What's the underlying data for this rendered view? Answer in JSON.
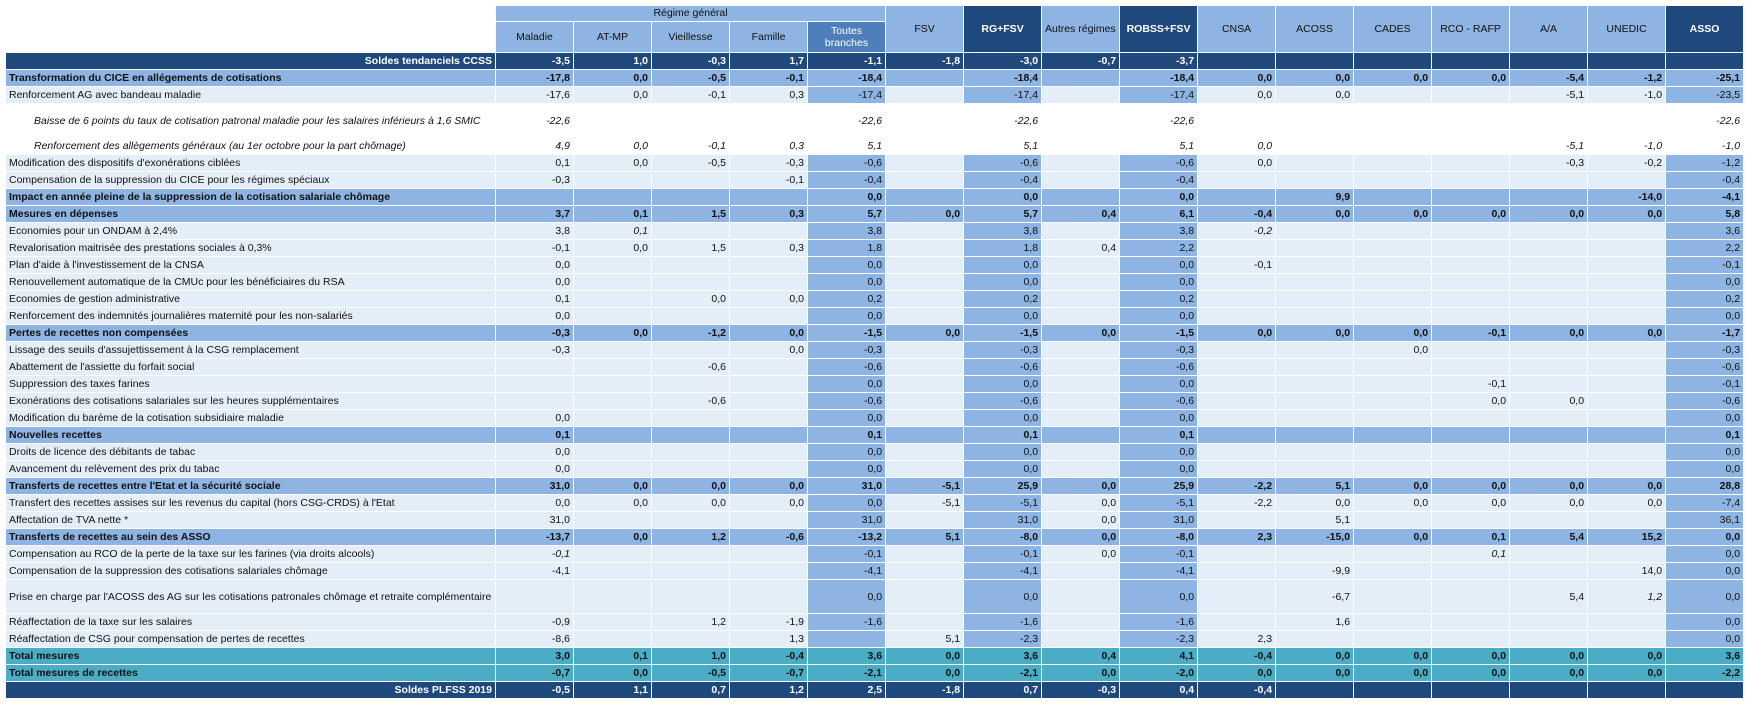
{
  "header": {
    "group_label": "Régime général",
    "columns": [
      "Maladie",
      "AT-MP",
      "Vieillesse",
      "Famille",
      "Toutes branches",
      "FSV",
      "RG+FSV",
      "Autres régimes de base",
      "ROBSS+FSV",
      "CNSA",
      "ACOSS",
      "CADES",
      "RCO - RAFP",
      "A/A",
      "UNEDIC",
      "ASSO"
    ],
    "highlight_columns": [
      "Toutes branches",
      "RG+FSV",
      "ROBSS+FSV",
      "ASSO"
    ]
  },
  "colors": {
    "dark": "#1f497d",
    "section": "#8db4e2",
    "item": "#e4eef8",
    "total": "#4bacc6"
  },
  "rows": [
    {
      "type": "top",
      "label": "Soldes tendanciels CCSS",
      "values": [
        "-3,5",
        "1,0",
        "-0,3",
        "1,7",
        "-1,1",
        "-1,8",
        "-3,0",
        "-0,7",
        "-3,7",
        "",
        "",
        "",
        "",
        "",
        "",
        ""
      ]
    },
    {
      "type": "section",
      "label": "Transformation du CICE en allégements de cotisations",
      "values": [
        "-17,8",
        "0,0",
        "-0,5",
        "-0,1",
        "-18,4",
        "",
        "-18,4",
        "",
        "-18,4",
        "0,0",
        "0,0",
        "0,0",
        "0,0",
        "-5,4",
        "-1,2",
        "-25,1"
      ]
    },
    {
      "type": "item",
      "label": "Renforcement AG avec bandeau maladie",
      "values": [
        "-17,6",
        "0,0",
        "-0,1",
        "0,3",
        "-17,4",
        "",
        "-17,4",
        "",
        "-17,4",
        "0,0",
        "0,0",
        "",
        "",
        "-5,1",
        "-1,0",
        "-23,5"
      ]
    },
    {
      "type": "sub",
      "double": true,
      "label": "Baisse de 6 points du taux de cotisation patronal maladie pour les salaires inférieurs à 1,6 SMIC",
      "values": [
        "-22,6",
        "",
        "",
        "",
        "-22,6",
        "",
        "-22,6",
        "",
        "-22,6",
        "",
        "",
        "",
        "",
        "",
        "",
        "-22,6"
      ]
    },
    {
      "type": "sub",
      "label": "Renforcement des allègements généraux (au 1er octobre pour la part chômage)",
      "values": [
        "4,9",
        "0,0",
        "-0,1",
        "0,3",
        "5,1",
        "",
        "5,1",
        "",
        "5,1",
        "0,0",
        "",
        "",
        "",
        "-5,1",
        "-1,0",
        "-1,0"
      ]
    },
    {
      "type": "item",
      "label": "Modification des dispositifs d'exonérations ciblées",
      "values": [
        "0,1",
        "0,0",
        "-0,5",
        "-0,3",
        "-0,6",
        "",
        "-0,6",
        "",
        "-0,6",
        "0,0",
        "",
        "",
        "",
        "-0,3",
        "-0,2",
        "-1,2"
      ]
    },
    {
      "type": "item",
      "label": "Compensation de la suppression du CICE pour les régimes spéciaux",
      "values": [
        "-0,3",
        "",
        "",
        "-0,1",
        "-0,4",
        "",
        "-0,4",
        "",
        "-0,4",
        "",
        "",
        "",
        "",
        "",
        "",
        "-0,4"
      ]
    },
    {
      "type": "section",
      "label": "Impact en année pleine de la suppression de la cotisation salariale chômage",
      "values": [
        "",
        "",
        "",
        "",
        "0,0",
        "",
        "0,0",
        "",
        "0,0",
        "",
        "9,9",
        "",
        "",
        "",
        "-14,0",
        "-4,1"
      ]
    },
    {
      "type": "section",
      "label": "Mesures en dépenses",
      "values": [
        "3,7",
        "0,1",
        "1,5",
        "0,3",
        "5,7",
        "0,0",
        "5,7",
        "0,4",
        "6,1",
        "-0,4",
        "0,0",
        "0,0",
        "0,0",
        "0,0",
        "0,0",
        "5,8"
      ]
    },
    {
      "type": "item",
      "label": "Economies pour un ONDAM à 2,4%",
      "values": [
        "3,8",
        "0,1",
        "",
        "",
        "3,8",
        "",
        "3,8",
        "",
        "3,8",
        "-0,2",
        "",
        "",
        "",
        "",
        "",
        "3,6"
      ],
      "italic": [
        1,
        9
      ]
    },
    {
      "type": "item",
      "label": "Revalorisation maitrisée des prestations sociales à 0,3%",
      "values": [
        "-0,1",
        "0,0",
        "1,5",
        "0,3",
        "1,8",
        "",
        "1,8",
        "0,4",
        "2,2",
        "",
        "",
        "",
        "",
        "",
        "",
        "2,2"
      ]
    },
    {
      "type": "item",
      "label": "Plan d'aide à l'investissement de la CNSA",
      "values": [
        "0,0",
        "",
        "",
        "",
        "0,0",
        "",
        "0,0",
        "",
        "0,0",
        "-0,1",
        "",
        "",
        "",
        "",
        "",
        "-0,1"
      ]
    },
    {
      "type": "item",
      "label": "Renouvellement automatique de la CMUc pour les bénéficiaires du RSA",
      "values": [
        "0,0",
        "",
        "",
        "",
        "0,0",
        "",
        "0,0",
        "",
        "0,0",
        "",
        "",
        "",
        "",
        "",
        "",
        "0,0"
      ]
    },
    {
      "type": "item",
      "label": "Economies de gestion administrative",
      "values": [
        "0,1",
        "",
        "0,0",
        "0,0",
        "0,2",
        "",
        "0,2",
        "",
        "0,2",
        "",
        "",
        "",
        "",
        "",
        "",
        "0,2"
      ]
    },
    {
      "type": "item",
      "label": "Renforcement des indemnités journalières maternité pour les non-salariés",
      "values": [
        "0,0",
        "",
        "",
        "",
        "0,0",
        "",
        "0,0",
        "",
        "0,0",
        "",
        "",
        "",
        "",
        "",
        "",
        "0,0"
      ]
    },
    {
      "type": "section",
      "label": "Pertes de recettes non compensées",
      "values": [
        "-0,3",
        "0,0",
        "-1,2",
        "0,0",
        "-1,5",
        "0,0",
        "-1,5",
        "0,0",
        "-1,5",
        "0,0",
        "0,0",
        "0,0",
        "-0,1",
        "0,0",
        "0,0",
        "-1,7"
      ]
    },
    {
      "type": "item",
      "label": "Lissage des seuils d'assujettissement à la CSG remplacement",
      "values": [
        "-0,3",
        "",
        "",
        "0,0",
        "-0,3",
        "",
        "-0,3",
        "",
        "-0,3",
        "",
        "",
        "0,0",
        "",
        "",
        "",
        "-0,3"
      ]
    },
    {
      "type": "item",
      "label": "Abattement de l'assiette du forfait social",
      "values": [
        "",
        "",
        "-0,6",
        "",
        "-0,6",
        "",
        "-0,6",
        "",
        "-0,6",
        "",
        "",
        "",
        "",
        "",
        "",
        "-0,6"
      ]
    },
    {
      "type": "item",
      "label": "Suppression des taxes farines",
      "values": [
        "",
        "",
        "",
        "",
        "0,0",
        "",
        "0,0",
        "",
        "0,0",
        "",
        "",
        "",
        "-0,1",
        "",
        "",
        "-0,1"
      ]
    },
    {
      "type": "item",
      "label": "Exonérations des cotisations salariales sur les heures supplémentaires",
      "values": [
        "",
        "",
        "-0,6",
        "",
        "-0,6",
        "",
        "-0,6",
        "",
        "-0,6",
        "",
        "",
        "",
        "0,0",
        "0,0",
        "",
        "-0,6"
      ]
    },
    {
      "type": "item",
      "label": "Modification du barème de la cotisation subsidiaire maladie",
      "values": [
        "0,0",
        "",
        "",
        "",
        "0,0",
        "",
        "0,0",
        "",
        "0,0",
        "",
        "",
        "",
        "",
        "",
        "",
        "0,0"
      ]
    },
    {
      "type": "section",
      "label": "Nouvelles recettes",
      "values": [
        "0,1",
        "",
        "",
        "",
        "0,1",
        "",
        "0,1",
        "",
        "0,1",
        "",
        "",
        "",
        "",
        "",
        "",
        "0,1"
      ]
    },
    {
      "type": "item",
      "label": "Droits de licence des débitants de tabac",
      "values": [
        "0,0",
        "",
        "",
        "",
        "0,0",
        "",
        "0,0",
        "",
        "0,0",
        "",
        "",
        "",
        "",
        "",
        "",
        "0,0"
      ]
    },
    {
      "type": "item",
      "label": "Avancement du relèvement des prix du tabac",
      "values": [
        "0,0",
        "",
        "",
        "",
        "0,0",
        "",
        "0,0",
        "",
        "0,0",
        "",
        "",
        "",
        "",
        "",
        "",
        "0,0"
      ]
    },
    {
      "type": "section",
      "label": "Transferts de recettes entre l'Etat et la sécurité sociale",
      "values": [
        "31,0",
        "0,0",
        "0,0",
        "0,0",
        "31,0",
        "-5,1",
        "25,9",
        "0,0",
        "25,9",
        "-2,2",
        "5,1",
        "0,0",
        "0,0",
        "0,0",
        "0,0",
        "28,8"
      ]
    },
    {
      "type": "item",
      "label": "Transfert des recettes assises sur les revenus du capital (hors CSG-CRDS) à l'Etat",
      "values": [
        "0,0",
        "0,0",
        "0,0",
        "0,0",
        "0,0",
        "-5,1",
        "-5,1",
        "0,0",
        "-5,1",
        "-2,2",
        "0,0",
        "0,0",
        "0,0",
        "0,0",
        "0,0",
        "-7,4"
      ]
    },
    {
      "type": "item",
      "label": "Affectation de TVA nette *",
      "values": [
        "31,0",
        "",
        "",
        "",
        "31,0",
        "",
        "31,0",
        "0,0",
        "31,0",
        "",
        "5,1",
        "",
        "",
        "",
        "",
        "36,1"
      ]
    },
    {
      "type": "section",
      "label": "Transferts de recettes au sein des ASSO",
      "values": [
        "-13,7",
        "0,0",
        "1,2",
        "-0,6",
        "-13,2",
        "5,1",
        "-8,0",
        "0,0",
        "-8,0",
        "2,3",
        "-15,0",
        "0,0",
        "0,1",
        "5,4",
        "15,2",
        "0,0"
      ]
    },
    {
      "type": "item",
      "label": "Compensation au RCO de la perte de la taxe sur les farines (via droits alcools)",
      "values": [
        "-0,1",
        "",
        "",
        "",
        "-0,1",
        "",
        "-0,1",
        "0,0",
        "-0,1",
        "",
        "",
        "",
        "0,1",
        "",
        "",
        "0,0"
      ],
      "italic": [
        0,
        12
      ]
    },
    {
      "type": "item",
      "label": "Compensation de la suppression des cotisations salariales chômage",
      "values": [
        "-4,1",
        "",
        "",
        "",
        "-4,1",
        "",
        "-4,1",
        "",
        "-4,1",
        "",
        "-9,9",
        "",
        "",
        "",
        "14,0",
        "0,0"
      ]
    },
    {
      "type": "item",
      "double": true,
      "label": "Prise en charge par l'ACOSS des AG sur les cotisations patronales chômage et retraite complémentaire",
      "values": [
        "",
        "",
        "",
        "",
        "0,0",
        "",
        "0,0",
        "",
        "0,0",
        "",
        "-6,7",
        "",
        "",
        "5,4",
        "1,2",
        "0,0"
      ],
      "italic": [
        14
      ]
    },
    {
      "type": "item",
      "label": "Réaffectation de la taxe sur les salaires",
      "values": [
        "-0,9",
        "",
        "1,2",
        "-1,9",
        "-1,6",
        "",
        "-1,6",
        "",
        "-1,6",
        "",
        "1,6",
        "",
        "",
        "",
        "",
        "0,0"
      ]
    },
    {
      "type": "item",
      "label": "Réaffectation de CSG pour compensation de pertes de recettes",
      "values": [
        "-8,6",
        "",
        "",
        "1,3",
        "",
        "5,1",
        "-2,3",
        "",
        "-2,3",
        "2,3",
        "",
        "",
        "",
        "",
        "",
        "0,0"
      ]
    },
    {
      "type": "total",
      "label": "Total mesures",
      "values": [
        "3,0",
        "0,1",
        "1,0",
        "-0,4",
        "3,6",
        "0,0",
        "3,6",
        "0,4",
        "4,1",
        "-0,4",
        "0,0",
        "0,0",
        "0,0",
        "0,0",
        "0,0",
        "3,6"
      ]
    },
    {
      "type": "total",
      "label": "Total mesures de recettes",
      "values": [
        "-0,7",
        "0,0",
        "-0,5",
        "-0,7",
        "-2,1",
        "0,0",
        "-2,1",
        "0,0",
        "-2,0",
        "0,0",
        "0,0",
        "0,0",
        "0,0",
        "0,0",
        "0,0",
        "-2,2"
      ]
    },
    {
      "type": "top",
      "label": "Soldes PLFSS 2019",
      "values": [
        "-0,5",
        "1,1",
        "0,7",
        "1,2",
        "2,5",
        "-1,8",
        "0,7",
        "-0,3",
        "0,4",
        "-0,4",
        "",
        "",
        "",
        "",
        "",
        ""
      ]
    }
  ]
}
